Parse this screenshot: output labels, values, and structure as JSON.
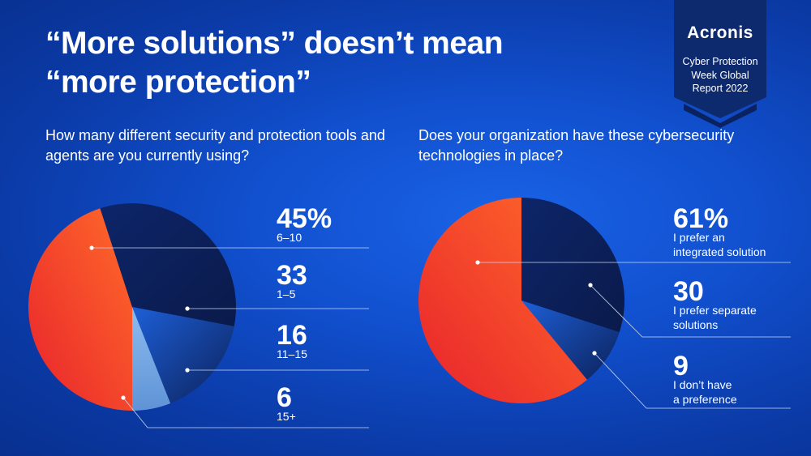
{
  "title": {
    "line1": "“More solutions” doesn’t mean",
    "line2": "“more protection”"
  },
  "badge": {
    "logo": "Acronis",
    "line1": "Cyber Protection",
    "line2": "Week Global",
    "line3": "Report 2022"
  },
  "colors": {
    "background": "#0f4fd1",
    "dark_navy": "#0d1f5c",
    "mid_blue": "#1a4db8",
    "light_blue": "#7fb0e6",
    "orange": "#ff5a2b",
    "red": "#e8262a"
  },
  "chart_data": [
    {
      "type": "pie",
      "title": "How many different security and protection tools and agents are you currently using?",
      "slices": [
        {
          "category": "6-10",
          "value": 45,
          "display": "45%",
          "sublabel": [
            "6–10"
          ]
        },
        {
          "category": "1-5",
          "value": 33,
          "display": "33",
          "sublabel": [
            "1–5"
          ]
        },
        {
          "category": "11-15",
          "value": 16,
          "display": "16",
          "sublabel": [
            "11–15"
          ]
        },
        {
          "category": "15+",
          "value": 6,
          "display": "6",
          "sublabel": [
            "15+"
          ]
        }
      ]
    },
    {
      "type": "pie",
      "title": "Does your organization have these cybersecurity technologies in place?",
      "slices": [
        {
          "category": "I prefer an integrated solution",
          "value": 61,
          "display": "61%",
          "sublabel": [
            "I prefer an",
            "integrated solution"
          ]
        },
        {
          "category": "I prefer separate solutions",
          "value": 30,
          "display": "30",
          "sublabel": [
            "I prefer  separate",
            "solutions"
          ]
        },
        {
          "category": "I don’t have a preference",
          "value": 9,
          "display": "9",
          "sublabel": [
            "I don’t have",
            "a preference"
          ]
        }
      ]
    }
  ]
}
